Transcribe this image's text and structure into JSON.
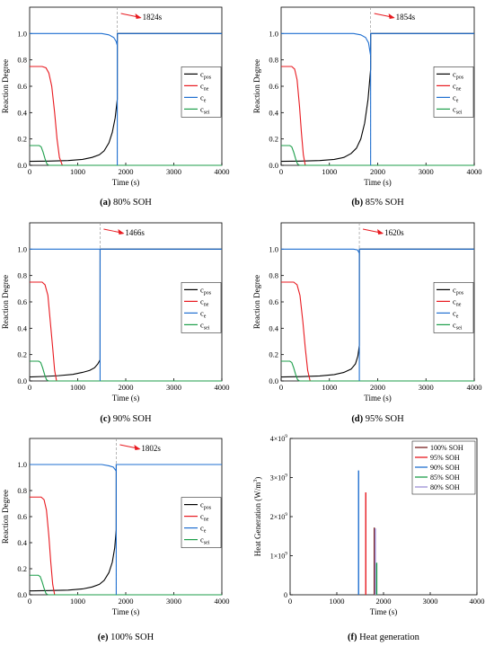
{
  "figure": {
    "background": "#ffffff",
    "axis_color": "#000000",
    "vline_color": "#999999",
    "arrow_color": "#e8191f"
  },
  "chart_data": [
    {
      "id": "a",
      "type": "line",
      "caption_bold": "(a)",
      "caption_rest": " 80% SOH",
      "xlabel": "Time (s)",
      "ylabel": "Reaction Degree",
      "xlim": [
        0,
        4000
      ],
      "ylim": [
        0,
        1.2
      ],
      "xticks": [
        "0",
        "1000",
        "2000",
        "3000",
        "4000"
      ],
      "yticks": [
        "0.0",
        "0.2",
        "0.4",
        "0.6",
        "0.8",
        "1.0"
      ],
      "grid": false,
      "legend_position": "center-right",
      "annotation": {
        "text": "1824s",
        "x": 1824
      },
      "series": [
        {
          "name_main": "c",
          "name_sub": "pos",
          "color": "#000000",
          "x": [
            0,
            400,
            800,
            1100,
            1300,
            1450,
            1550,
            1650,
            1720,
            1780,
            1824,
            1825,
            4000
          ],
          "y": [
            0.03,
            0.032,
            0.036,
            0.045,
            0.06,
            0.08,
            0.11,
            0.17,
            0.25,
            0.36,
            0.5,
            1.0,
            1.0
          ]
        },
        {
          "name_main": "c",
          "name_sub": "ne",
          "color": "#e8191f",
          "x": [
            0,
            260,
            340,
            400,
            460,
            520,
            570,
            620,
            680,
            4000
          ],
          "y": [
            0.75,
            0.75,
            0.74,
            0.7,
            0.6,
            0.4,
            0.2,
            0.06,
            0.0,
            0.0
          ]
        },
        {
          "name_main": "c",
          "name_sub": "e",
          "color": "#1f6fd0",
          "x": [
            0,
            1500,
            1650,
            1750,
            1800,
            1824,
            1825,
            4000
          ],
          "y": [
            1.0,
            1.0,
            0.99,
            0.97,
            0.94,
            0.91,
            1.0,
            1.0
          ]
        },
        {
          "name_main": "c",
          "name_sub": "sei",
          "color": "#1c9e4a",
          "x": [
            0,
            200,
            240,
            280,
            320,
            360,
            400,
            4000
          ],
          "y": [
            0.15,
            0.15,
            0.14,
            0.1,
            0.05,
            0.01,
            0.0,
            0.0
          ]
        }
      ],
      "drop_line": {
        "x": 1824,
        "y_from": 0.0,
        "y_to": 0.91,
        "color": "#1f6fd0"
      }
    },
    {
      "id": "b",
      "type": "line",
      "caption_bold": "(b)",
      "caption_rest": " 85% SOH",
      "xlabel": "Time (s)",
      "ylabel": "Reaction Degree",
      "xlim": [
        0,
        4000
      ],
      "ylim": [
        0,
        1.2
      ],
      "xticks": [
        "0",
        "1000",
        "2000",
        "3000",
        "4000"
      ],
      "yticks": [
        "0.0",
        "0.2",
        "0.4",
        "0.6",
        "0.8",
        "1.0"
      ],
      "grid": false,
      "legend_position": "center-right",
      "annotation": {
        "text": "1854s",
        "x": 1854
      },
      "series": [
        {
          "name_main": "c",
          "name_sub": "pos",
          "color": "#000000",
          "x": [
            0,
            400,
            800,
            1100,
            1300,
            1450,
            1560,
            1650,
            1730,
            1800,
            1854,
            1855,
            4000
          ],
          "y": [
            0.03,
            0.032,
            0.036,
            0.045,
            0.06,
            0.09,
            0.13,
            0.2,
            0.32,
            0.5,
            0.73,
            1.0,
            1.0
          ]
        },
        {
          "name_main": "c",
          "name_sub": "ne",
          "color": "#e8191f",
          "x": [
            0,
            220,
            280,
            330,
            380,
            420,
            460,
            500,
            4000
          ],
          "y": [
            0.75,
            0.75,
            0.73,
            0.65,
            0.45,
            0.25,
            0.08,
            0.0,
            0.0
          ]
        },
        {
          "name_main": "c",
          "name_sub": "e",
          "color": "#1f6fd0",
          "x": [
            0,
            1500,
            1650,
            1750,
            1810,
            1854,
            1855,
            4000
          ],
          "y": [
            1.0,
            1.0,
            0.99,
            0.97,
            0.93,
            0.83,
            1.0,
            1.0
          ]
        },
        {
          "name_main": "c",
          "name_sub": "sei",
          "color": "#1c9e4a",
          "x": [
            0,
            180,
            220,
            260,
            300,
            340,
            380,
            4000
          ],
          "y": [
            0.15,
            0.15,
            0.14,
            0.1,
            0.05,
            0.01,
            0.0,
            0.0
          ]
        }
      ],
      "drop_line": {
        "x": 1854,
        "y_from": 0.0,
        "y_to": 0.83,
        "color": "#1f6fd0"
      }
    },
    {
      "id": "c",
      "type": "line",
      "caption_bold": "(c)",
      "caption_rest": " 90% SOH",
      "xlabel": "Time (s)",
      "ylabel": "Reaction Degree",
      "xlim": [
        0,
        4000
      ],
      "ylim": [
        0,
        1.2
      ],
      "xticks": [
        "0",
        "1000",
        "2000",
        "3000",
        "4000"
      ],
      "yticks": [
        "0.0",
        "0.2",
        "0.4",
        "0.6",
        "0.8",
        "1.0"
      ],
      "grid": false,
      "legend_position": "center-right",
      "annotation": {
        "text": "1466s",
        "x": 1466
      },
      "series": [
        {
          "name_main": "c",
          "name_sub": "pos",
          "color": "#000000",
          "x": [
            0,
            300,
            600,
            900,
            1100,
            1250,
            1350,
            1420,
            1466,
            1467,
            4000
          ],
          "y": [
            0.03,
            0.034,
            0.04,
            0.05,
            0.065,
            0.08,
            0.1,
            0.13,
            0.16,
            1.0,
            1.0
          ]
        },
        {
          "name_main": "c",
          "name_sub": "ne",
          "color": "#e8191f",
          "x": [
            0,
            260,
            320,
            380,
            430,
            480,
            520,
            560,
            4000
          ],
          "y": [
            0.75,
            0.75,
            0.73,
            0.65,
            0.45,
            0.25,
            0.08,
            0.0,
            0.0
          ]
        },
        {
          "name_main": "c",
          "name_sub": "e",
          "color": "#1f6fd0",
          "x": [
            0,
            1466,
            4000
          ],
          "y": [
            1.0,
            1.0,
            1.0
          ]
        },
        {
          "name_main": "c",
          "name_sub": "sei",
          "color": "#1c9e4a",
          "x": [
            0,
            190,
            230,
            270,
            310,
            350,
            390,
            4000
          ],
          "y": [
            0.15,
            0.15,
            0.14,
            0.1,
            0.05,
            0.01,
            0.0,
            0.0
          ]
        }
      ],
      "drop_line": {
        "x": 1466,
        "y_from": 0.0,
        "y_to": 1.0,
        "color": "#1f6fd0"
      }
    },
    {
      "id": "d",
      "type": "line",
      "caption_bold": "(d)",
      "caption_rest": " 95% SOH",
      "xlabel": "Time (s)",
      "ylabel": "Reaction Degree",
      "xlim": [
        0,
        4000
      ],
      "ylim": [
        0,
        1.2
      ],
      "xticks": [
        "0",
        "1000",
        "2000",
        "3000",
        "4000"
      ],
      "yticks": [
        "0.0",
        "0.2",
        "0.4",
        "0.6",
        "0.8",
        "1.0"
      ],
      "grid": false,
      "legend_position": "center-right",
      "annotation": {
        "text": "1620s",
        "x": 1620
      },
      "series": [
        {
          "name_main": "c",
          "name_sub": "pos",
          "color": "#000000",
          "x": [
            0,
            400,
            800,
            1100,
            1300,
            1450,
            1540,
            1590,
            1620,
            1621,
            4000
          ],
          "y": [
            0.03,
            0.033,
            0.038,
            0.048,
            0.065,
            0.09,
            0.13,
            0.19,
            0.27,
            1.0,
            1.0
          ]
        },
        {
          "name_main": "c",
          "name_sub": "ne",
          "color": "#e8191f",
          "x": [
            0,
            260,
            330,
            390,
            450,
            500,
            550,
            600,
            4000
          ],
          "y": [
            0.75,
            0.75,
            0.73,
            0.65,
            0.45,
            0.25,
            0.08,
            0.0,
            0.0
          ]
        },
        {
          "name_main": "c",
          "name_sub": "e",
          "color": "#1f6fd0",
          "x": [
            0,
            1500,
            1580,
            1620,
            1621,
            4000
          ],
          "y": [
            1.0,
            1.0,
            0.995,
            0.97,
            1.0,
            1.0
          ]
        },
        {
          "name_main": "c",
          "name_sub": "sei",
          "color": "#1c9e4a",
          "x": [
            0,
            180,
            220,
            260,
            300,
            340,
            380,
            4000
          ],
          "y": [
            0.15,
            0.15,
            0.14,
            0.1,
            0.05,
            0.01,
            0.0,
            0.0
          ]
        }
      ],
      "drop_line": {
        "x": 1620,
        "y_from": 0.0,
        "y_to": 0.97,
        "color": "#1f6fd0"
      }
    },
    {
      "id": "e",
      "type": "line",
      "caption_bold": "(e)",
      "caption_rest": " 100% SOH",
      "xlabel": "Time (s)",
      "ylabel": "Reaction Degree",
      "xlim": [
        0,
        4000
      ],
      "ylim": [
        0,
        1.2
      ],
      "xticks": [
        "0",
        "1000",
        "2000",
        "3000",
        "4000"
      ],
      "yticks": [
        "0.0",
        "0.2",
        "0.4",
        "0.6",
        "0.8",
        "1.0"
      ],
      "grid": false,
      "legend_position": "center-right",
      "annotation": {
        "text": "1802s",
        "x": 1802
      },
      "series": [
        {
          "name_main": "c",
          "name_sub": "pos",
          "color": "#000000",
          "x": [
            0,
            400,
            800,
            1100,
            1300,
            1450,
            1550,
            1650,
            1720,
            1770,
            1802,
            1803,
            4000
          ],
          "y": [
            0.03,
            0.032,
            0.036,
            0.045,
            0.06,
            0.08,
            0.11,
            0.17,
            0.25,
            0.36,
            0.5,
            1.0,
            1.0
          ]
        },
        {
          "name_main": "c",
          "name_sub": "ne",
          "color": "#e8191f",
          "x": [
            0,
            240,
            300,
            350,
            400,
            440,
            480,
            520,
            4000
          ],
          "y": [
            0.75,
            0.75,
            0.73,
            0.65,
            0.45,
            0.25,
            0.08,
            0.0,
            0.0
          ]
        },
        {
          "name_main": "c",
          "name_sub": "e",
          "color": "#1f6fd0",
          "x": [
            0,
            1500,
            1650,
            1740,
            1802,
            1803,
            4000
          ],
          "y": [
            1.0,
            1.0,
            0.99,
            0.98,
            0.95,
            1.0,
            1.0
          ]
        },
        {
          "name_main": "c",
          "name_sub": "sei",
          "color": "#1c9e4a",
          "x": [
            0,
            180,
            220,
            260,
            300,
            340,
            380,
            4000
          ],
          "y": [
            0.15,
            0.15,
            0.14,
            0.1,
            0.05,
            0.01,
            0.0,
            0.0
          ]
        }
      ],
      "drop_line": {
        "x": 1802,
        "y_from": 0.0,
        "y_to": 0.95,
        "color": "#1f6fd0"
      }
    },
    {
      "id": "f",
      "type": "bar",
      "caption_bold": "(f)",
      "caption_rest": " Heat generation",
      "xlabel": "Time (s)",
      "ylabel_main": "Heat Generation (W/m",
      "ylabel_sup": "3",
      "ylabel_end": ")",
      "xlim": [
        0,
        4000
      ],
      "ylim": [
        0,
        4000000000.0
      ],
      "xticks": [
        "0",
        "1000",
        "2000",
        "3000",
        "4000"
      ],
      "yticks": [
        {
          "value": 0,
          "main": "0",
          "sup": ""
        },
        {
          "value": 1000000000.0,
          "main": "1×10",
          "sup": "9"
        },
        {
          "value": 2000000000.0,
          "main": "2×10",
          "sup": "9"
        },
        {
          "value": 3000000000.0,
          "main": "3×10",
          "sup": "9"
        },
        {
          "value": 4000000000.0,
          "main": "4×10",
          "sup": "9"
        }
      ],
      "grid": false,
      "legend_position": "top-right",
      "series": [
        {
          "name": "100% SOH",
          "color": "#7a1f1f",
          "x": 1802,
          "value": 1720000000.0
        },
        {
          "name": "95% SOH",
          "color": "#e8191f",
          "x": 1620,
          "value": 2620000000.0
        },
        {
          "name": "90% SOH",
          "color": "#1f6fd0",
          "x": 1466,
          "value": 3180000000.0
        },
        {
          "name": "85% SOH",
          "color": "#1c9e4a",
          "x": 1854,
          "value": 820000000.0
        },
        {
          "name": "80% SOH",
          "color": "#9b8fd6",
          "x": 1824,
          "value": 1700000000.0
        }
      ]
    }
  ]
}
